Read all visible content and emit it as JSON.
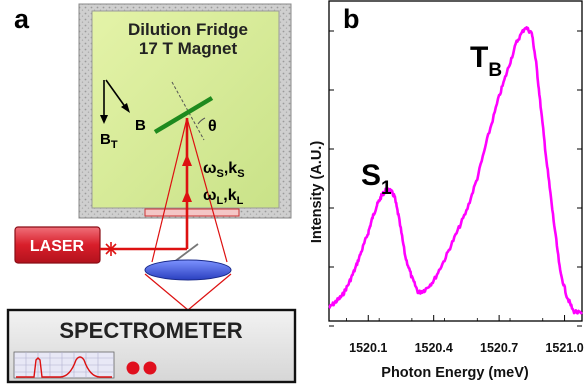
{
  "panel_a": {
    "letter": "a",
    "fridge_title_line1": "Dilution Fridge",
    "fridge_title_line2": "17 T Magnet",
    "theta_label": "θ",
    "field_label": "B",
    "field_t_label": "B",
    "field_t_sub": "T",
    "scattered_label": "ωS,kS",
    "laser_beam_label": "ωL,kL",
    "laser_label": "LASER",
    "spectrometer_label": "SPECTROMETER",
    "colors": {
      "beam": "#dd1111",
      "mirror": "#1e8a1e",
      "lens": "#3a55d8",
      "laser_box": "#d81e2a",
      "fridge_fill": "#dcef9a",
      "red_dot": "#e0101e"
    }
  },
  "panel_b": {
    "letter": "b",
    "peak1_main": "S",
    "peak1_sub": "1",
    "peak2_main": "T",
    "peak2_sub": "B"
  },
  "chart_data": {
    "type": "line",
    "title": "",
    "xlabel": "Photon Energy (meV)",
    "ylabel": "Intensity (A.U.)",
    "x_ticks": [
      "1520.1",
      "1520.4",
      "1520.7",
      "1521.0"
    ],
    "xlim": [
      1519.92,
      1521.08
    ],
    "ylim": [
      0,
      1.0
    ],
    "grid": false,
    "series": [
      {
        "color": "#ff00ff",
        "x": [
          1519.92,
          1519.95,
          1519.98,
          1520.01,
          1520.04,
          1520.07,
          1520.1,
          1520.12,
          1520.14,
          1520.16,
          1520.18,
          1520.2,
          1520.22,
          1520.24,
          1520.27,
          1520.3,
          1520.33,
          1520.36,
          1520.4,
          1520.45,
          1520.5,
          1520.55,
          1520.6,
          1520.65,
          1520.7,
          1520.74,
          1520.78,
          1520.82,
          1520.85,
          1520.87,
          1520.89,
          1520.92,
          1520.95,
          1520.98,
          1521.01,
          1521.04,
          1521.08
        ],
        "y": [
          0.03,
          0.05,
          0.07,
          0.11,
          0.16,
          0.22,
          0.28,
          0.33,
          0.37,
          0.4,
          0.42,
          0.42,
          0.4,
          0.33,
          0.2,
          0.13,
          0.08,
          0.09,
          0.12,
          0.19,
          0.27,
          0.35,
          0.46,
          0.6,
          0.73,
          0.82,
          0.91,
          0.96,
          0.94,
          0.84,
          0.7,
          0.5,
          0.32,
          0.15,
          0.07,
          0.02,
          0.01
        ]
      }
    ],
    "annotations": [
      "S1",
      "TB"
    ]
  }
}
